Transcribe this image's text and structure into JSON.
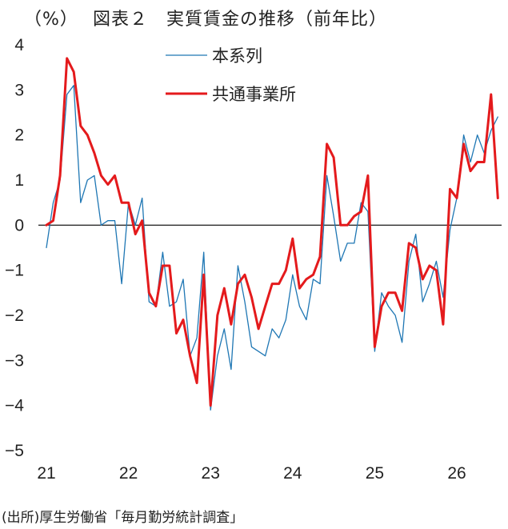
{
  "title_unit": "（%）",
  "title": "図表２　実質賃金の推移（前年比）",
  "source": "(出所)厚生労働省「毎月勤労統計調査」",
  "chart_data": {
    "type": "line",
    "ylim": [
      -5,
      4
    ],
    "y_ticks": [
      "4",
      "3",
      "2",
      "1",
      "0",
      "−1",
      "−2",
      "−3",
      "−4",
      "−5"
    ],
    "y_tick_values": [
      4,
      3,
      2,
      1,
      0,
      -1,
      -2,
      -3,
      -4,
      -5
    ],
    "x_tick_labels": [
      "21",
      "22",
      "23",
      "24",
      "25",
      "26"
    ],
    "x_start": "2021-01",
    "zero_line": true,
    "legend_position": "top-center",
    "series": [
      {
        "name": "本系列",
        "color": "#1f77b4",
        "width": 1.3,
        "values": [
          -0.5,
          0.5,
          1.0,
          2.9,
          3.1,
          0.5,
          1.0,
          1.1,
          0.0,
          0.1,
          0.1,
          -1.3,
          0.5,
          0.0,
          0.6,
          -1.7,
          -1.8,
          -0.6,
          -1.8,
          -1.7,
          -1.2,
          -2.9,
          -2.5,
          -0.6,
          -4.1,
          -2.9,
          -2.3,
          -3.2,
          -0.9,
          -1.7,
          -2.7,
          -2.8,
          -2.9,
          -2.3,
          -2.5,
          -2.1,
          -1.1,
          -1.8,
          -2.1,
          -1.2,
          -1.3,
          1.1,
          0.2,
          -0.8,
          -0.4,
          -0.4,
          0.5,
          0.3,
          -2.8,
          -1.5,
          -1.8,
          -2.0,
          -2.6,
          -0.8,
          -0.2,
          -1.7,
          -1.3,
          -0.8,
          -1.6,
          -0.1,
          0.6,
          2.0,
          1.4,
          2.0,
          1.6,
          2.1,
          2.4
        ]
      },
      {
        "name": "共通事業所",
        "color": "#e41a1c",
        "width": 3,
        "values": [
          0.0,
          0.1,
          1.1,
          3.7,
          3.4,
          2.2,
          2.0,
          1.6,
          1.1,
          0.9,
          1.1,
          0.5,
          0.5,
          -0.2,
          0.1,
          -1.5,
          -1.8,
          -0.9,
          -0.9,
          -2.4,
          -2.1,
          -2.9,
          -3.5,
          -1.1,
          -4.0,
          -2.0,
          -1.4,
          -2.2,
          -1.3,
          -1.1,
          -1.6,
          -2.3,
          -1.8,
          -1.3,
          -1.3,
          -1.0,
          -0.3,
          -1.4,
          -1.2,
          -1.1,
          -0.7,
          1.8,
          1.5,
          0.0,
          0.0,
          0.2,
          0.3,
          1.1,
          -2.7,
          -1.8,
          -1.5,
          -1.5,
          -1.9,
          -0.4,
          -0.5,
          -1.2,
          -0.9,
          -1.0,
          -2.2,
          0.8,
          0.6,
          1.8,
          1.2,
          1.4,
          1.4,
          2.9,
          0.6
        ]
      }
    ]
  }
}
